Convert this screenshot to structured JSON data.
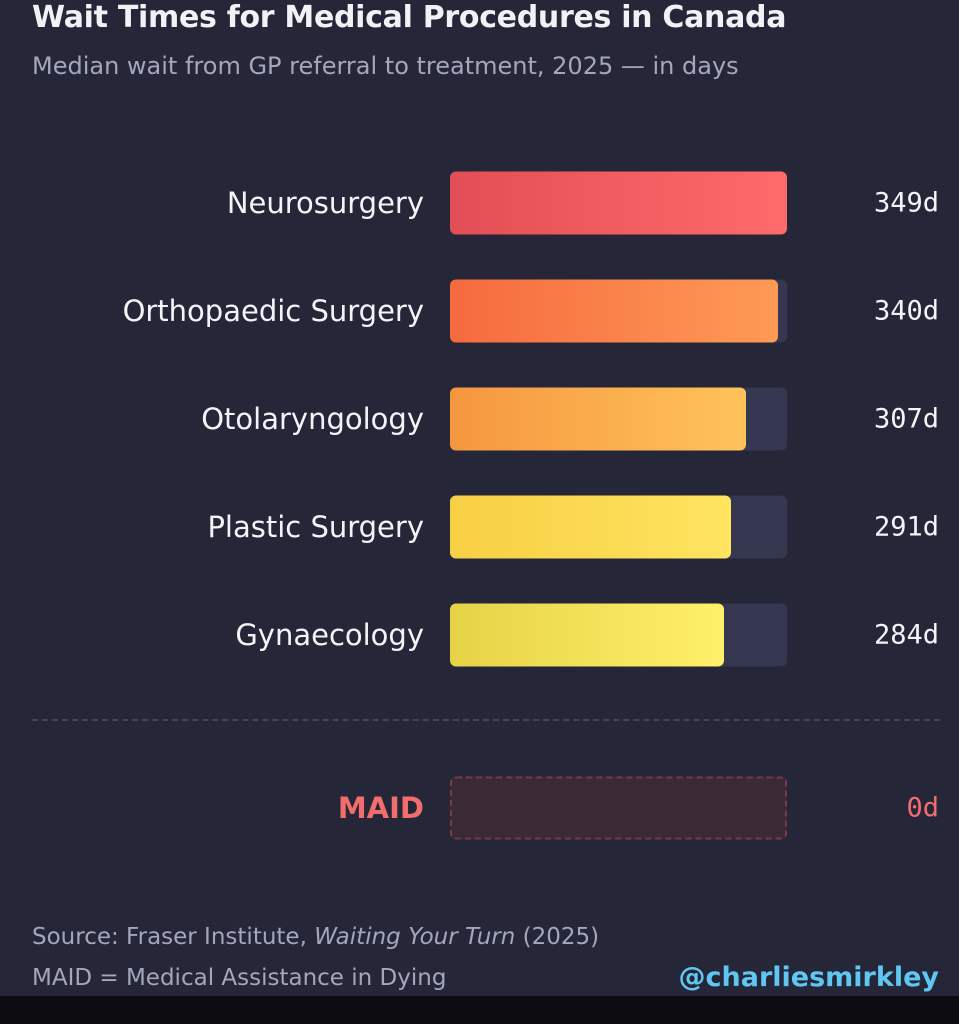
{
  "chart_data": {
    "type": "bar",
    "orientation": "horizontal",
    "title": "Wait Times for Medical Procedures in Canada",
    "subtitle": "Median wait from GP referral to treatment, 2025 — in days",
    "xlim": [
      0,
      349
    ],
    "grid": false,
    "categories": [
      "Neurosurgery",
      "Orthopaedic Surgery",
      "Otolaryngology",
      "Plastic Surgery",
      "Gynaecology"
    ],
    "values": [
      349,
      340,
      307,
      291,
      284
    ],
    "value_labels": [
      "349d",
      "340d",
      "307d",
      "291d",
      "284d"
    ],
    "colors": [
      [
        "#e24e55",
        "#ff6b6b"
      ],
      [
        "#f56a3f",
        "#ff9a55"
      ],
      [
        "#f5963f",
        "#ffc35a"
      ],
      [
        "#f7cf44",
        "#ffe460"
      ],
      [
        "#e6d246",
        "#fff06a"
      ]
    ],
    "highlight": {
      "category": "MAID",
      "value": 0,
      "value_label": "0d",
      "color": "#f26d6d"
    }
  },
  "footer": {
    "source_prefix": "Source: Fraser Institute, ",
    "source_title": "Waiting Your Turn",
    "source_suffix": " (2025)",
    "note": "MAID = Medical Assistance in Dying",
    "handle": "@charliesmirkley"
  }
}
